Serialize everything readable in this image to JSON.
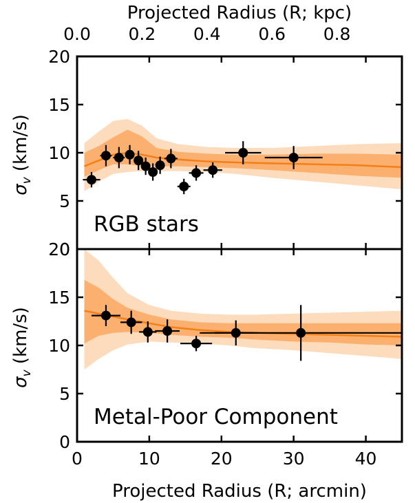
{
  "chart_data": [
    {
      "type": "scatter",
      "panel_label": "RGB stars",
      "xlabel": "Projected Radius (R; arcmin)",
      "ylabel": "σ_v (km/s)",
      "top_xlabel": "Projected Radius (R; kpc)",
      "xlim": [
        0,
        45
      ],
      "ylim": [
        0,
        20
      ],
      "top_xlim_kpc": [
        0,
        1.0
      ],
      "top_xticks": [
        "0.0",
        "0.2",
        "0.4",
        "0.6",
        "0.8"
      ],
      "yticks": [
        "0",
        "5",
        "10",
        "15",
        "20"
      ],
      "points": [
        {
          "x": 2.0,
          "y": 7.2,
          "xerr": 1.2,
          "yerr": 0.8
        },
        {
          "x": 4.0,
          "y": 9.7,
          "xerr": 0.8,
          "yerr": 1.1
        },
        {
          "x": 5.8,
          "y": 9.5,
          "xerr": 0.8,
          "yerr": 1.1
        },
        {
          "x": 7.3,
          "y": 9.8,
          "xerr": 0.6,
          "yerr": 1.0
        },
        {
          "x": 8.5,
          "y": 9.2,
          "xerr": 0.6,
          "yerr": 1.0
        },
        {
          "x": 9.5,
          "y": 8.6,
          "xerr": 0.5,
          "yerr": 0.9
        },
        {
          "x": 10.5,
          "y": 8.0,
          "xerr": 0.6,
          "yerr": 0.9
        },
        {
          "x": 11.5,
          "y": 8.7,
          "xerr": 0.6,
          "yerr": 0.9
        },
        {
          "x": 13.0,
          "y": 9.4,
          "xerr": 0.9,
          "yerr": 1.0
        },
        {
          "x": 14.8,
          "y": 6.5,
          "xerr": 0.9,
          "yerr": 0.8
        },
        {
          "x": 16.5,
          "y": 7.9,
          "xerr": 1.0,
          "yerr": 0.8
        },
        {
          "x": 18.8,
          "y": 8.2,
          "xerr": 1.3,
          "yerr": 0.8
        },
        {
          "x": 23.0,
          "y": 10.0,
          "xerr": 2.5,
          "yerr": 1.2
        },
        {
          "x": 30.0,
          "y": 9.5,
          "xerr": 4.0,
          "yerr": 1.2
        }
      ],
      "model": {
        "x": [
          1,
          3,
          5,
          7,
          9,
          11,
          14,
          18,
          22,
          27,
          33,
          39,
          45
        ],
        "median": [
          8.6,
          9.2,
          9.8,
          10.0,
          9.8,
          9.5,
          9.3,
          9.1,
          9.0,
          8.9,
          8.8,
          8.7,
          8.5
        ],
        "inner_lo": [
          7.5,
          8.2,
          8.8,
          8.8,
          8.6,
          8.6,
          8.6,
          8.5,
          8.4,
          8.2,
          7.9,
          7.6,
          7.4
        ],
        "inner_hi": [
          10.0,
          10.7,
          11.6,
          12.4,
          11.7,
          10.5,
          10.1,
          9.9,
          9.8,
          9.8,
          9.9,
          9.9,
          9.8
        ],
        "outer_lo": [
          6.0,
          7.0,
          7.8,
          8.0,
          8.1,
          8.1,
          8.1,
          8.0,
          7.8,
          7.4,
          7.0,
          6.6,
          6.2
        ],
        "outer_hi": [
          11.0,
          12.2,
          13.3,
          13.5,
          12.8,
          11.5,
          10.9,
          10.6,
          10.5,
          10.5,
          10.7,
          10.9,
          11.0
        ]
      }
    },
    {
      "type": "scatter",
      "panel_label": "Metal-Poor Component",
      "xlabel": "Projected Radius (R; arcmin)",
      "ylabel": "σ_v (km/s)",
      "xlim": [
        0,
        45
      ],
      "ylim": [
        0,
        20
      ],
      "xticks": [
        "0",
        "10",
        "20",
        "30",
        "40"
      ],
      "yticks": [
        "0",
        "5",
        "10",
        "15",
        "20"
      ],
      "points": [
        {
          "x": 4.0,
          "y": 13.1,
          "xerr": 2.0,
          "yerr": 1.1
        },
        {
          "x": 7.5,
          "y": 12.4,
          "xerr": 1.5,
          "yerr": 1.2
        },
        {
          "x": 9.8,
          "y": 11.4,
          "xerr": 1.2,
          "yerr": 1.1
        },
        {
          "x": 12.5,
          "y": 11.5,
          "xerr": 1.7,
          "yerr": 1.2
        },
        {
          "x": 16.5,
          "y": 10.2,
          "xerr": 2.2,
          "yerr": 0.8
        },
        {
          "x": 22.0,
          "y": 11.3,
          "xerr": 3.0,
          "yerr": 1.3
        },
        {
          "x": 31.0,
          "y": 11.3,
          "xerr": 14.0,
          "yerr": 2.9
        }
      ],
      "model": {
        "x": [
          1,
          3,
          5,
          7,
          10,
          13,
          17,
          21,
          25,
          30,
          35,
          40,
          45
        ],
        "median": [
          13.6,
          13.3,
          13.0,
          12.7,
          12.3,
          11.9,
          11.6,
          11.4,
          11.3,
          11.2,
          11.1,
          11.0,
          10.9
        ],
        "inner_lo": [
          10.2,
          11.0,
          11.3,
          11.4,
          11.3,
          11.1,
          10.9,
          10.8,
          10.6,
          10.4,
          10.3,
          10.1,
          10.0
        ],
        "inner_hi": [
          16.8,
          16.0,
          14.8,
          13.9,
          13.2,
          12.7,
          12.4,
          12.3,
          12.3,
          12.3,
          12.3,
          12.3,
          12.3
        ],
        "outer_lo": [
          7.5,
          8.6,
          9.5,
          10.1,
          10.4,
          10.3,
          10.2,
          10.0,
          9.7,
          9.5,
          9.2,
          8.9,
          8.6
        ],
        "outer_hi": [
          20.0,
          18.8,
          17.0,
          15.4,
          14.2,
          13.6,
          13.3,
          13.2,
          13.2,
          13.3,
          13.4,
          13.5,
          13.6
        ]
      }
    }
  ],
  "colors": {
    "outer_band": "#fddcbd",
    "inner_band": "#fbb070",
    "median_line": "#f57f17",
    "points": "#000000"
  }
}
